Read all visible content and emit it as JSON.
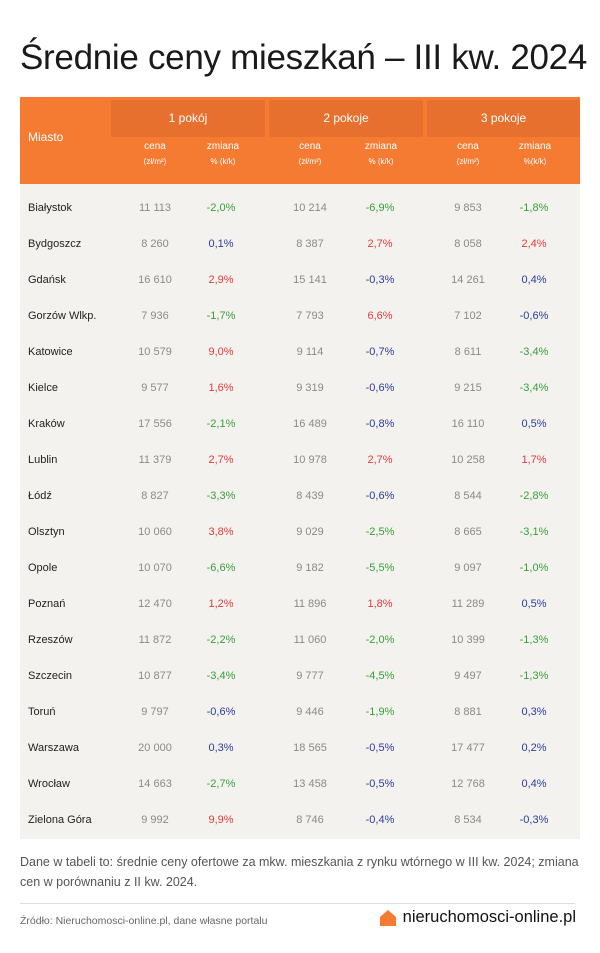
{
  "title": "Średnie ceny mieszkań – III kw. 2024",
  "table": {
    "city_header": "Miasto",
    "groups": [
      {
        "label": "1 pokój",
        "price_label": "cena",
        "price_unit": "(zł/m²)",
        "change_label": "zmiana",
        "change_unit": "% (k/k)"
      },
      {
        "label": "2 pokoje",
        "price_label": "cena",
        "price_unit": "(zł/m²)",
        "change_label": "zmiana",
        "change_unit": "% (k/k)"
      },
      {
        "label": "3 pokoje",
        "price_label": "cena",
        "price_unit": "(zł/m²)",
        "change_label": "zmiana",
        "change_unit": "%(k/k)"
      }
    ],
    "rows": [
      {
        "city": "Białystok",
        "p1": "11 113",
        "c1": "-2,0%",
        "p2": "10 214",
        "c2": "-6,9%",
        "p3": "9 853",
        "c3": "-1,8%"
      },
      {
        "city": "Bydgoszcz",
        "p1": "8 260",
        "c1": "0,1%",
        "p2": "8 387",
        "c2": "2,7%",
        "p3": "8 058",
        "c3": "2,4%"
      },
      {
        "city": "Gdańsk",
        "p1": "16 610",
        "c1": "2,9%",
        "p2": "15 141",
        "c2": "-0,3%",
        "p3": "14 261",
        "c3": "0,4%"
      },
      {
        "city": "Gorzów Wlkp.",
        "p1": "7 936",
        "c1": "-1,7%",
        "p2": "7 793",
        "c2": "6,6%",
        "p3": "7 102",
        "c3": "-0,6%"
      },
      {
        "city": "Katowice",
        "p1": "10 579",
        "c1": "9,0%",
        "p2": "9 114",
        "c2": "-0,7%",
        "p3": "8 611",
        "c3": "-3,4%"
      },
      {
        "city": "Kielce",
        "p1": "9 577",
        "c1": "1,6%",
        "p2": "9 319",
        "c2": "-0,6%",
        "p3": "9 215",
        "c3": "-3,4%"
      },
      {
        "city": "Kraków",
        "p1": "17 556",
        "c1": "-2,1%",
        "p2": "16 489",
        "c2": "-0,8%",
        "p3": "16 110",
        "c3": "0,5%"
      },
      {
        "city": "Lublin",
        "p1": "11 379",
        "c1": "2,7%",
        "p2": "10 978",
        "c2": "2,7%",
        "p3": "10 258",
        "c3": "1,7%"
      },
      {
        "city": "Łódź",
        "p1": "8 827",
        "c1": "-3,3%",
        "p2": "8 439",
        "c2": "-0,6%",
        "p3": "8 544",
        "c3": "-2,8%"
      },
      {
        "city": "Olsztyn",
        "p1": "10 060",
        "c1": "3,8%",
        "p2": "9 029",
        "c2": "-2,5%",
        "p3": "8 665",
        "c3": "-3,1%"
      },
      {
        "city": "Opole",
        "p1": "10 070",
        "c1": "-6,6%",
        "p2": "9 182",
        "c2": "-5,5%",
        "p3": "9 097",
        "c3": "-1,0%"
      },
      {
        "city": "Poznań",
        "p1": "12 470",
        "c1": "1,2%",
        "p2": "11 896",
        "c2": "1,8%",
        "p3": "11 289",
        "c3": "0,5%"
      },
      {
        "city": "Rzeszów",
        "p1": "11 872",
        "c1": "-2,2%",
        "p2": "11 060",
        "c2": "-2,0%",
        "p3": "10 399",
        "c3": "-1,3%"
      },
      {
        "city": "Szczecin",
        "p1": "10 877",
        "c1": "-3,4%",
        "p2": "9 777",
        "c2": "-4,5%",
        "p3": "9 497",
        "c3": "-1,3%"
      },
      {
        "city": "Toruń",
        "p1": "9 797",
        "c1": "-0,6%",
        "p2": "9 446",
        "c2": "-1,9%",
        "p3": "8 881",
        "c3": "0,3%"
      },
      {
        "city": "Warszawa",
        "p1": "20 000",
        "c1": "0,3%",
        "p2": "18 565",
        "c2": "-0,5%",
        "p3": "17 477",
        "c3": "0,2%"
      },
      {
        "city": "Wrocław",
        "p1": "14 663",
        "c1": "-2,7%",
        "p2": "13 458",
        "c2": "-0,5%",
        "p3": "12 768",
        "c3": "0,4%"
      },
      {
        "city": "Zielona Góra",
        "p1": "9 992",
        "c1": "9,9%",
        "p2": "8 746",
        "c2": "-0,4%",
        "p3": "8 534",
        "c3": "-0,3%"
      }
    ],
    "change_colors": {
      "1": [
        "green",
        "blue",
        "red",
        "green",
        "red",
        "red",
        "green",
        "red",
        "green",
        "red",
        "green",
        "red",
        "green",
        "green",
        "blue",
        "blue",
        "green",
        "red"
      ],
      "2": [
        "green",
        "red",
        "blue",
        "red",
        "blue",
        "blue",
        "blue",
        "red",
        "blue",
        "green",
        "green",
        "red",
        "green",
        "green",
        "green",
        "blue",
        "blue",
        "blue"
      ],
      "3": [
        "green",
        "red",
        "blue",
        "blue",
        "green",
        "green",
        "blue",
        "red",
        "green",
        "green",
        "green",
        "blue",
        "green",
        "green",
        "blue",
        "blue",
        "blue",
        "blue"
      ]
    }
  },
  "colors": {
    "header_bg": "#f57b33",
    "group_bg": "#e8702e",
    "body_bg": "#f3f2ef",
    "red": "#e03b3b",
    "green": "#3a9e3a",
    "blue": "#2c3c9c"
  },
  "note": "Dane w tabeli to: średnie ceny ofertowe za mkw. mieszkania z rynku wtórnego w III kw. 2024; zmiana cen w porównaniu z II kw. 2024.",
  "source": "Źródło: Nieruchomosci-online.pl, dane własne portalu",
  "brand": {
    "name": "nieruchomosci-online.pl",
    "icon": "house-icon"
  }
}
